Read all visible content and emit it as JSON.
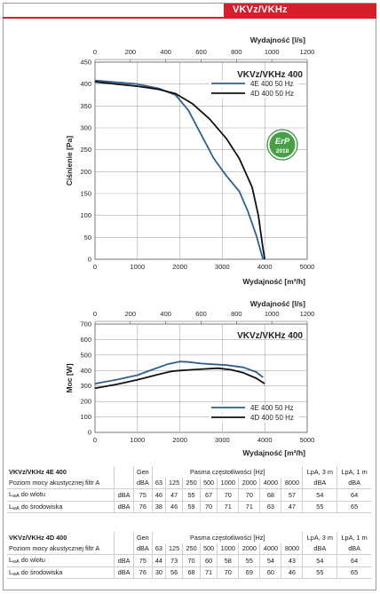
{
  "header": {
    "title": "VKVz/VKHz"
  },
  "chart_data": [
    {
      "type": "line",
      "title": "VKVz/VKHz 400",
      "ylabel": "Ciśnienie [Pa]",
      "xlabel_bottom": "Wydajność [m³/h]",
      "xlabel_top": "Wydajność [l/s]",
      "xlim": [
        0,
        5000
      ],
      "ylim": [
        0,
        450
      ],
      "x_ticks": [
        "0",
        "1000",
        "2000",
        "3000",
        "4000",
        "5000"
      ],
      "x_top_ticks": [
        "0",
        "200",
        "400",
        "600",
        "800",
        "1000",
        "1200"
      ],
      "y_ticks": [
        "0",
        "50",
        "100",
        "150",
        "200",
        "250",
        "300",
        "350",
        "400",
        "450"
      ],
      "grid": true,
      "legend_position": "top-right",
      "badge": {
        "text": "ErP",
        "year": "2018"
      },
      "series": [
        {
          "name": "4E 400 50 Hz",
          "color": "#2f5f8f",
          "x": [
            0,
            500,
            1000,
            1500,
            1900,
            2200,
            2500,
            2800,
            3100,
            3400,
            3600,
            3800,
            3900,
            3960
          ],
          "y": [
            408,
            404,
            400,
            390,
            375,
            340,
            285,
            230,
            190,
            155,
            110,
            55,
            20,
            0
          ]
        },
        {
          "name": "4D 400 50 Hz",
          "color": "#111111",
          "x": [
            0,
            500,
            1000,
            1500,
            1900,
            2300,
            2700,
            3100,
            3400,
            3700,
            3850,
            3950,
            4000
          ],
          "y": [
            405,
            400,
            395,
            388,
            378,
            355,
            320,
            275,
            230,
            165,
            100,
            30,
            0
          ]
        }
      ]
    },
    {
      "type": "line",
      "title": "VKVz/VKHz 400",
      "ylabel": "Moc [W]",
      "xlabel_bottom": "Wydajność [m³/h]",
      "xlabel_top": "Wydajność [l/s]",
      "xlim": [
        0,
        5000
      ],
      "ylim": [
        0,
        700
      ],
      "x_ticks": [
        "0",
        "1000",
        "2000",
        "3000",
        "4000",
        "5000"
      ],
      "x_top_ticks": [
        "0",
        "200",
        "400",
        "600",
        "800",
        "1000",
        "1200"
      ],
      "y_ticks": [
        "0",
        "100",
        "200",
        "300",
        "400",
        "500",
        "600",
        "700"
      ],
      "grid": true,
      "legend_position": "bottom-right",
      "series": [
        {
          "name": "4E 400 50 Hz",
          "color": "#2f5f8f",
          "x": [
            0,
            500,
            1000,
            1400,
            1700,
            2000,
            2200,
            2500,
            2800,
            3100,
            3500,
            3800,
            3960
          ],
          "y": [
            315,
            340,
            370,
            410,
            440,
            458,
            455,
            445,
            440,
            435,
            420,
            390,
            355
          ]
        },
        {
          "name": "4D 400 50 Hz",
          "color": "#111111",
          "x": [
            0,
            500,
            1000,
            1500,
            1800,
            2000,
            2300,
            2600,
            2900,
            3200,
            3500,
            3800,
            4000
          ],
          "y": [
            285,
            310,
            340,
            375,
            395,
            400,
            405,
            410,
            415,
            405,
            385,
            350,
            315
          ]
        }
      ]
    }
  ],
  "tables": [
    {
      "model": "VKVz/VKHz 4E 400",
      "subtitle": "Poziom mocy akustycznej filtr A",
      "gen_label": "Gen",
      "bands_label": "Pasma częstotliwości [Hz]",
      "lpa3_label": "LpA, 3 m",
      "lpa1_label": "LpA, 1 m",
      "unit": "dBA",
      "bands": [
        "63",
        "125",
        "250",
        "500",
        "1000",
        "2000",
        "4000",
        "8000"
      ],
      "rows": [
        {
          "lwa": "L",
          "sub": "wA",
          "label": " do wlotu",
          "unit": "dBA",
          "gen": "75",
          "values": [
            "46",
            "47",
            "55",
            "67",
            "70",
            "70",
            "68",
            "57"
          ],
          "lpa3": "54",
          "lpa1": "64"
        },
        {
          "lwa": "L",
          "sub": "wA",
          "label": " do środowiska",
          "unit": "dBA",
          "gen": "76",
          "values": [
            "38",
            "46",
            "59",
            "70",
            "71",
            "71",
            "63",
            "47"
          ],
          "lpa3": "55",
          "lpa1": "65"
        }
      ]
    },
    {
      "model": "VKVz/VKHz 4D 400",
      "subtitle": "Poziom mocy akustycznej filtr A",
      "gen_label": "Gen",
      "bands_label": "Pasma częstotliwości [Hz]",
      "lpa3_label": "LpA, 3 m",
      "lpa1_label": "LpA, 1 m",
      "unit": "dBA",
      "bands": [
        "63",
        "125",
        "250",
        "500",
        "1000",
        "2000",
        "4000",
        "8000"
      ],
      "rows": [
        {
          "lwa": "L",
          "sub": "wA",
          "label": "  do wlotu",
          "unit": "dBA",
          "gen": "75",
          "values": [
            "44",
            "73",
            "70",
            "60",
            "58",
            "55",
            "54",
            "43"
          ],
          "lpa3": "54",
          "lpa1": "64"
        },
        {
          "lwa": "L",
          "sub": "wA",
          "label": " do środowiska",
          "unit": "dBA",
          "gen": "76",
          "values": [
            "30",
            "56",
            "68",
            "71",
            "70",
            "69",
            "60",
            "46"
          ],
          "lpa3": "55",
          "lpa1": "65"
        }
      ]
    }
  ]
}
